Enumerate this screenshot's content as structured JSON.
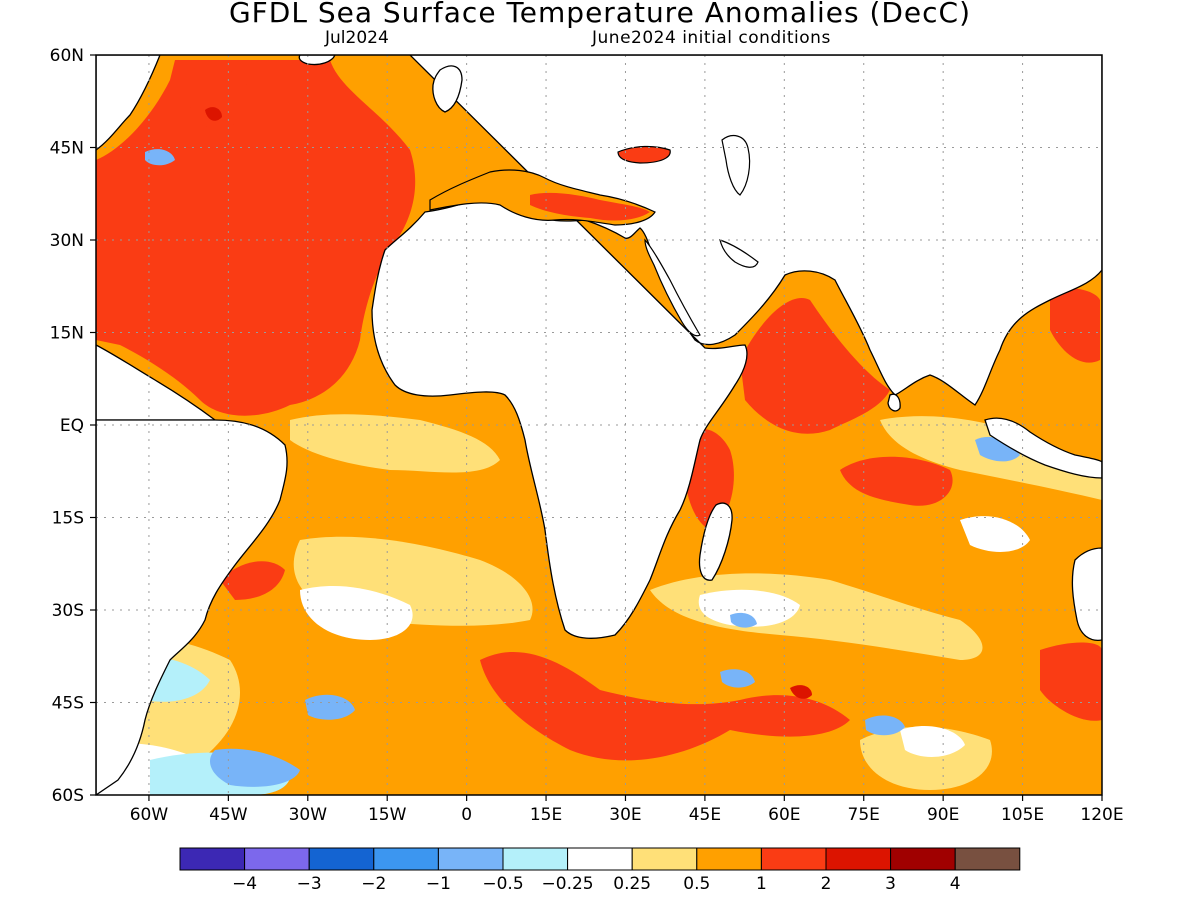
{
  "title": "GFDL Sea Surface Temperature Anomalies (DecC)",
  "subtitle_left": "Jul2024",
  "subtitle_right": "June2024 initial conditions",
  "lat_labels": [
    "60N",
    "45N",
    "30N",
    "15N",
    "EQ",
    "15S",
    "30S",
    "45S",
    "60S"
  ],
  "lon_labels": [
    "60W",
    "45W",
    "30W",
    "15W",
    "0",
    "15E",
    "30E",
    "45E",
    "60E",
    "75E",
    "90E",
    "105E",
    "120E"
  ],
  "legend": {
    "labels": [
      "−4",
      "−3",
      "−2",
      "−1",
      "−0.5",
      "−0.25",
      "0.25",
      "0.5",
      "1",
      "2",
      "3",
      "4"
    ],
    "colors": [
      "#3c28b4",
      "#7c68ec",
      "#1464d2",
      "#3c96f0",
      "#78b4f8",
      "#b4f0fa",
      "#ffffff",
      "#ffe078",
      "#ffa000",
      "#fa3c14",
      "#dc1400",
      "#a00000",
      "#785040"
    ]
  },
  "colors": {
    "land": "#ffffff",
    "coast": "#000000",
    "grid": "#9a9a9a"
  }
}
